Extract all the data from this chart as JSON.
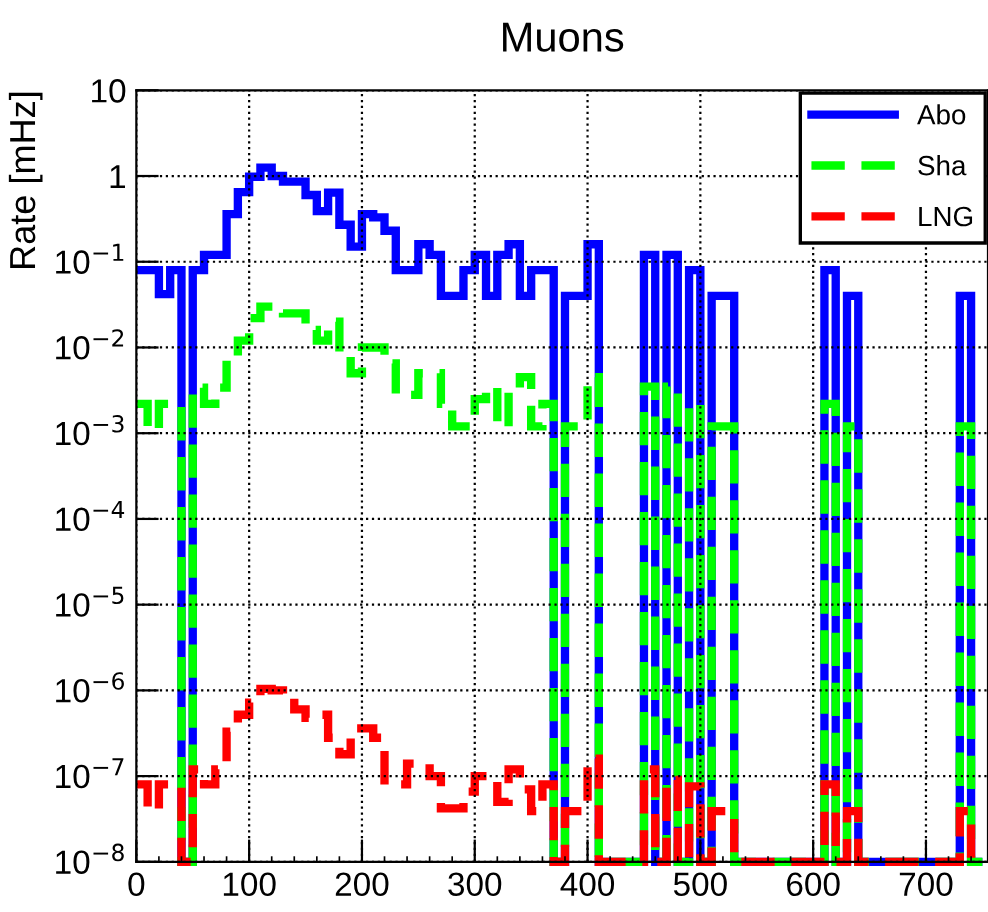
{
  "chart_data": {
    "type": "histogram",
    "title": "Muons",
    "ylabel": "Rate [mHz]",
    "bins": [
      0,
      10,
      20,
      30,
      40,
      50,
      60,
      70,
      80,
      90,
      100,
      110,
      120,
      130,
      140,
      150,
      160,
      170,
      180,
      190,
      200,
      210,
      220,
      230,
      240,
      250,
      260,
      270,
      280,
      290,
      300,
      310,
      320,
      330,
      340,
      350,
      360,
      370,
      380,
      390,
      400,
      410,
      420,
      430,
      440,
      450,
      460,
      470,
      480,
      490,
      500,
      510,
      520,
      530,
      540,
      550,
      560,
      570,
      580,
      590,
      600,
      610,
      620,
      630,
      640,
      650,
      660,
      670,
      680,
      690,
      700,
      710,
      720,
      730,
      740,
      750
    ],
    "series": [
      {
        "name": "Abo",
        "color": "#0000ff",
        "line_style": "solid",
        "values": [
          0.08,
          0.08,
          0.042,
          0.08,
          null,
          0.08,
          0.12,
          0.12,
          0.36,
          0.65,
          0.98,
          1.25,
          1.0,
          0.86,
          0.86,
          0.6,
          0.39,
          0.64,
          0.27,
          0.15,
          0.36,
          0.33,
          0.23,
          0.08,
          0.08,
          0.16,
          0.12,
          0.04,
          0.04,
          0.08,
          0.12,
          0.04,
          0.12,
          0.16,
          0.04,
          0.08,
          0.08,
          null,
          0.04,
          0.04,
          0.16,
          null,
          null,
          null,
          null,
          0.12,
          null,
          0.12,
          null,
          0.08,
          null,
          0.04,
          0.04,
          null,
          null,
          null,
          null,
          null,
          null,
          null,
          null,
          0.08,
          null,
          0.04,
          null,
          null,
          null,
          null,
          null,
          null,
          null,
          null,
          null,
          0.04,
          null
        ]
      },
      {
        "name": "Sha",
        "color": "#00ff00",
        "line_style": "dashed",
        "values": [
          0.0022,
          0.0011,
          0.0022,
          0.0022,
          null,
          0.0034,
          0.0022,
          0.0034,
          0.008,
          0.012,
          0.022,
          0.03,
          0.03,
          0.025,
          0.025,
          0.016,
          0.012,
          0.02,
          0.008,
          0.005,
          0.01,
          0.01,
          0.0065,
          0.0028,
          0.0028,
          0.005,
          0.005,
          0.0022,
          0.0012,
          0.0012,
          0.0025,
          0.0034,
          0.0012,
          0.0034,
          0.0045,
          0.0012,
          0.0022,
          null,
          0.0012,
          0.0012,
          0.0045,
          null,
          null,
          null,
          null,
          0.0035,
          null,
          0.0035,
          null,
          0.0022,
          null,
          0.0012,
          0.0012,
          null,
          null,
          null,
          null,
          null,
          null,
          null,
          null,
          0.0022,
          null,
          0.0012,
          null,
          null,
          null,
          null,
          null,
          null,
          null,
          null,
          null,
          0.0012,
          null
        ]
      },
      {
        "name": "LNG",
        "color": "#ff0000",
        "line_style": "dashed",
        "values": [
          8e-08,
          4e-08,
          8e-08,
          8e-08,
          null,
          1.2e-07,
          8e-08,
          1.2e-07,
          3.3e-07,
          5.2e-07,
          7.2e-07,
          1.04e-06,
          1e-06,
          8.7e-07,
          6e-07,
          4.8e-07,
          5.2e-07,
          2.8e-07,
          1.8e-07,
          3.6e-07,
          3.6e-07,
          2.8e-07,
          8e-08,
          8e-08,
          1.4e-07,
          1.4e-07,
          1e-07,
          4.2e-08,
          4.2e-08,
          6.6e-08,
          1e-07,
          1e-07,
          5e-08,
          1.2e-07,
          7e-08,
          3.9e-08,
          8e-08,
          null,
          3.9e-08,
          3.9e-08,
          1.6e-07,
          null,
          null,
          null,
          null,
          1.2e-07,
          null,
          9e-08,
          null,
          7.6e-08,
          null,
          3.9e-08,
          3.9e-08,
          null,
          null,
          null,
          null,
          null,
          null,
          null,
          null,
          8e-08,
          null,
          3.9e-08,
          null,
          null,
          null,
          null,
          null,
          null,
          null,
          null,
          null,
          3.9e-08,
          null
        ]
      }
    ],
    "log": "y",
    "xlim": [
      0,
      755
    ],
    "ylim": [
      1e-08,
      10
    ],
    "xticks": [
      0,
      100,
      200,
      300,
      400,
      500,
      600,
      700
    ],
    "yticks": [
      {
        "value": 1e-08,
        "label": "10$^{−8}$"
      },
      {
        "value": 1e-07,
        "label": "10$^{−7}$"
      },
      {
        "value": 1e-06,
        "label": "10$^{−6}$"
      },
      {
        "value": 1e-05,
        "label": "10$^{−5}$"
      },
      {
        "value": 0.0001,
        "label": "10$^{−4}$"
      },
      {
        "value": 0.001,
        "label": "10$^{−3}$"
      },
      {
        "value": 0.01,
        "label": "10$^{−2}$"
      },
      {
        "value": 0.1,
        "label": "10$^{−1}$"
      },
      1,
      10
    ],
    "grid": true,
    "legend": "top right"
  }
}
